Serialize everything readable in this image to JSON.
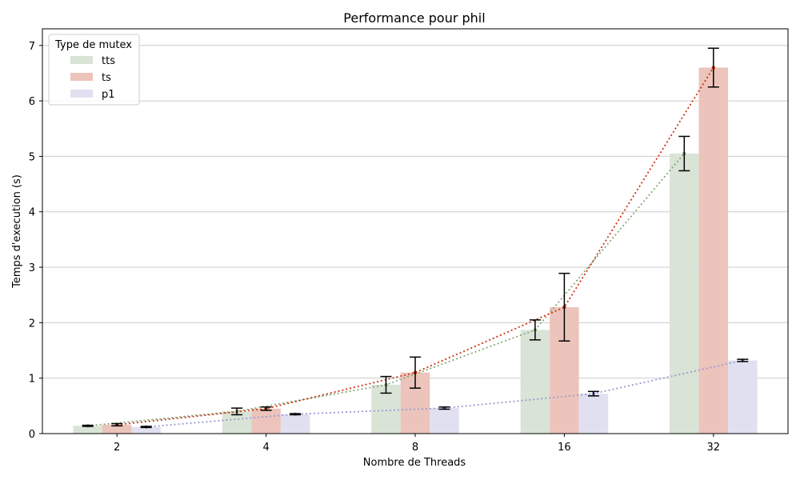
{
  "chart_data": {
    "type": "bar",
    "title": "Performance pour phil",
    "xlabel": "Nombre de Threads",
    "ylabel": "Temps d'execution (s)",
    "ylim": [
      0,
      7.3
    ],
    "yticks": [
      0,
      1,
      2,
      3,
      4,
      5,
      6,
      7
    ],
    "categories": [
      "2",
      "4",
      "8",
      "16",
      "32"
    ],
    "grid": "horizontal",
    "legend": {
      "title": "Type de mutex",
      "placement": "top-left"
    },
    "series": [
      {
        "name": "tts",
        "bar_color": "#d9e3d6",
        "line_color": "#86a878",
        "values": [
          0.14,
          0.4,
          0.88,
          1.87,
          5.05
        ],
        "errors": [
          0.01,
          0.06,
          0.15,
          0.18,
          0.31
        ]
      },
      {
        "name": "ts",
        "bar_color": "#ecc4bb",
        "line_color": "#cc3311",
        "values": [
          0.16,
          0.45,
          1.1,
          2.28,
          6.6
        ],
        "errors": [
          0.02,
          0.03,
          0.28,
          0.61,
          0.35
        ]
      },
      {
        "name": "p1",
        "bar_color": "#e1e0f0",
        "line_color": "#9a9ad0",
        "values": [
          0.12,
          0.35,
          0.46,
          0.72,
          1.32
        ],
        "errors": [
          0.01,
          0.01,
          0.02,
          0.04,
          0.02
        ]
      }
    ]
  }
}
